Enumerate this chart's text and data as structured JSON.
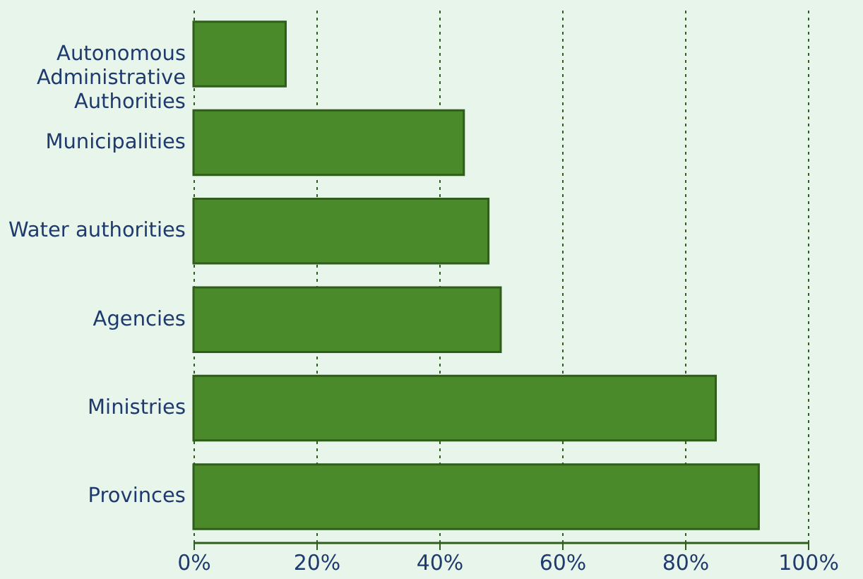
{
  "chart_data": {
    "type": "bar",
    "orientation": "horizontal",
    "categories": [
      "Autonomous Administrative Authorities",
      "Municipalities",
      "Water authorities",
      "Agencies",
      "Ministries",
      "Provinces"
    ],
    "values": [
      15,
      44,
      48,
      50,
      85,
      92
    ],
    "color": "#4a8a2a",
    "xlim": [
      0,
      100
    ],
    "xticks": [
      {
        "value": 0,
        "label": "0%"
      },
      {
        "value": 20,
        "label": "20%"
      },
      {
        "value": 40,
        "label": "40%"
      },
      {
        "value": 60,
        "label": "60%"
      },
      {
        "value": 80,
        "label": "80%"
      },
      {
        "value": 100,
        "label": "100%"
      }
    ],
    "grid": "x"
  }
}
